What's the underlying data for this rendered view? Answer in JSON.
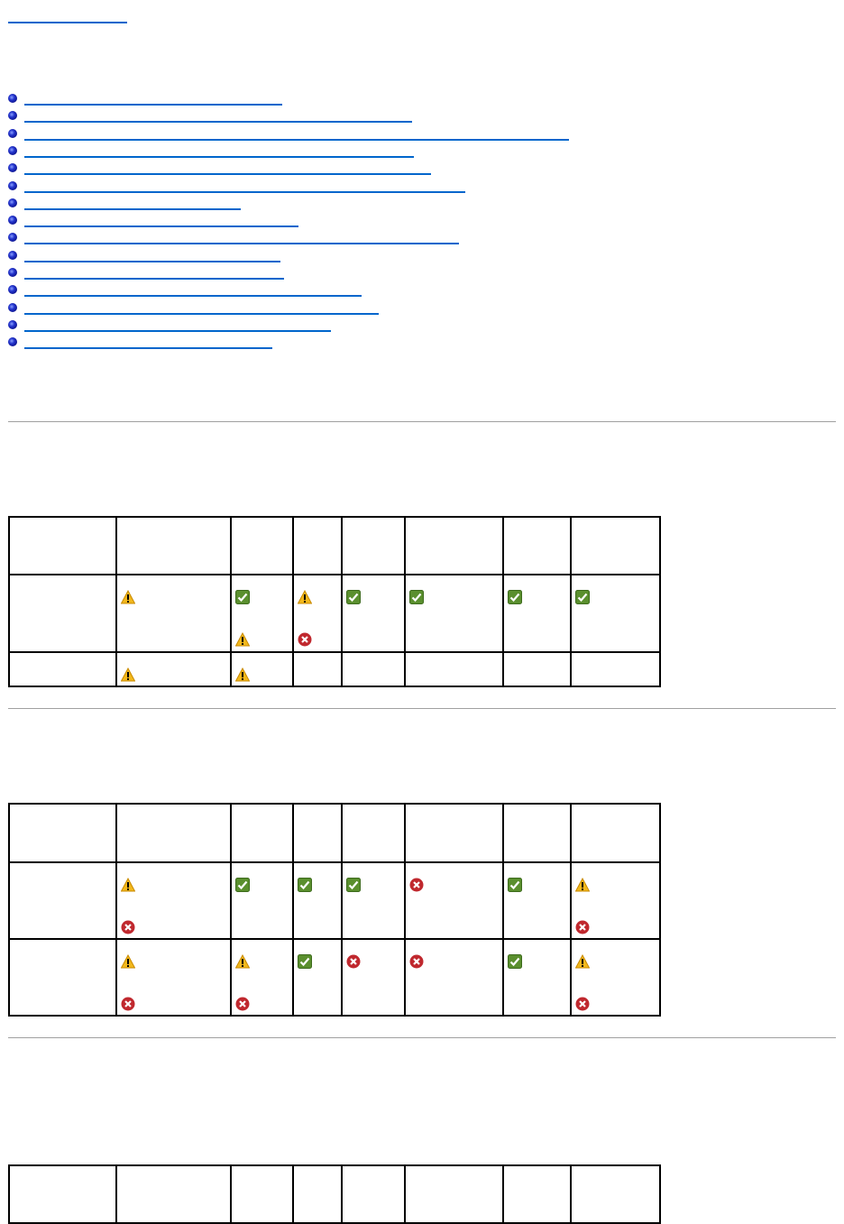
{
  "top_link": {
    "text": ""
  },
  "toc_links": [
    {
      "text": ""
    },
    {
      "text": ""
    },
    {
      "text": ""
    },
    {
      "text": ""
    },
    {
      "text": ""
    },
    {
      "text": ""
    },
    {
      "text": ""
    },
    {
      "text": ""
    },
    {
      "text": ""
    },
    {
      "text": ""
    },
    {
      "text": ""
    },
    {
      "text": ""
    },
    {
      "text": ""
    },
    {
      "text": ""
    },
    {
      "text": ""
    }
  ],
  "colors": {
    "link": "#0066cc",
    "ok": "#5a8f2e",
    "warning": "#f2b81c",
    "error": "#c0282e"
  },
  "tables": [
    {
      "rows": [
        [
          [],
          [],
          [],
          [],
          [],
          [],
          [],
          []
        ],
        [
          [],
          [
            "warning"
          ],
          [
            "ok",
            "warning"
          ],
          [
            "warning",
            "error"
          ],
          [
            "ok"
          ],
          [
            "ok"
          ],
          [
            "ok"
          ],
          [
            "ok"
          ]
        ],
        [
          [],
          [
            "warning"
          ],
          [
            "warning"
          ],
          [],
          [],
          [],
          [],
          []
        ]
      ]
    },
    {
      "rows": [
        [
          [],
          [],
          [],
          [],
          [],
          [],
          [],
          []
        ],
        [
          [],
          [
            "warning",
            "error"
          ],
          [
            "ok"
          ],
          [
            "ok"
          ],
          [
            "ok"
          ],
          [
            "error"
          ],
          [
            "ok"
          ],
          [
            "warning",
            "error"
          ]
        ],
        [
          [],
          [
            "warning",
            "error"
          ],
          [
            "warning",
            "error"
          ],
          [
            "ok"
          ],
          [
            "error"
          ],
          [
            "error"
          ],
          [
            "ok"
          ],
          [
            "warning",
            "error"
          ]
        ]
      ]
    },
    {
      "rows": [
        [
          [],
          [],
          [],
          [],
          [],
          [],
          [],
          []
        ]
      ]
    }
  ]
}
